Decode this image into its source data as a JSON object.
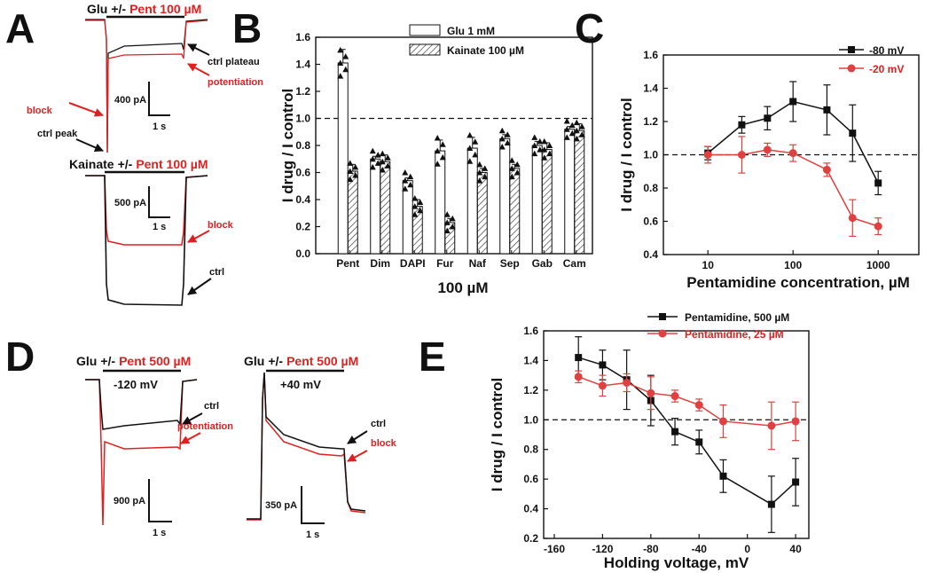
{
  "panel_labels": {
    "a": "A",
    "b": "B",
    "c": "C",
    "d": "D",
    "e": "E"
  },
  "traces": {
    "a_top": {
      "prefix": "Glu",
      "pm": "+/-",
      "drug": "Pent 100 µM",
      "ctrl_plateau": "ctrl plateau",
      "potentiation": "potentiation",
      "block": "block",
      "ctrl_peak": "ctrl peak",
      "scale_current": "400 pA",
      "scale_time": "1 s"
    },
    "a_bottom": {
      "prefix": "Kainate",
      "pm": "+/-",
      "drug": "Pent 100 µM",
      "scale_current": "500 pA",
      "scale_time": "1 s",
      "block": "block",
      "ctrl": "ctrl"
    },
    "d_left": {
      "prefix": "Glu",
      "pm": "+/-",
      "drug": "Pent 500 µM",
      "voltage": "-120 mV",
      "ctrl": "ctrl",
      "potentiation": "potentiation",
      "scale_current": "900 pA",
      "scale_time": "1 s"
    },
    "d_right": {
      "prefix": "Glu",
      "pm": "+/-",
      "drug": "Pent 500 µM",
      "voltage": "+40 mV",
      "ctrl": "ctrl",
      "block": "block",
      "scale_current": "350 pA",
      "scale_time": "1 s"
    }
  },
  "colors": {
    "black": "#111111",
    "red": "#e02020",
    "bar_open": "#ffffff"
  },
  "chart_data": [
    {
      "id": "B",
      "type": "bar",
      "title": "",
      "xlabel": "100 µM",
      "ylabel": "I drug / I control",
      "ylim": [
        0,
        1.6
      ],
      "yticks": [
        "0.0",
        "0.2",
        "0.4",
        "0.6",
        "0.8",
        "1.0",
        "1.2",
        "1.4",
        "1.6"
      ],
      "reference_line": 1.0,
      "categories": [
        "Pent",
        "Dim",
        "DAPI",
        "Fur",
        "Naf",
        "Sep",
        "Gab",
        "Cam"
      ],
      "series": [
        {
          "name": "Glu 1 mM",
          "values": [
            1.41,
            0.7,
            0.54,
            0.76,
            0.78,
            0.85,
            0.8,
            0.92
          ],
          "errors": [
            0.1,
            0.02,
            0.02,
            0.08,
            0.08,
            0.03,
            0.03,
            0.02
          ]
        },
        {
          "name": "Kainate 100 µM",
          "values": [
            0.61,
            0.68,
            0.35,
            0.23,
            0.6,
            0.63,
            0.77,
            0.91
          ],
          "errors": [
            0.05,
            0.05,
            0.05,
            0.03,
            0.03,
            0.03,
            0.05,
            0.05
          ]
        }
      ]
    },
    {
      "id": "C",
      "type": "line",
      "xscale": "log",
      "xlabel": "Pentamidine concentration, µM",
      "ylabel": "I drug / I control",
      "xlim": [
        3,
        3000
      ],
      "ylim": [
        0.4,
        1.6
      ],
      "xticks": [
        "10",
        "100",
        "1000"
      ],
      "yticks": [
        "0.4",
        "0.6",
        "0.8",
        "1.0",
        "1.2",
        "1.4",
        "1.6"
      ],
      "reference_line": 1.0,
      "legend_position": "top-right",
      "series": [
        {
          "name": "-80 mV",
          "marker": "square",
          "x": [
            10,
            25,
            50,
            100,
            250,
            500,
            1000
          ],
          "y": [
            1.01,
            1.18,
            1.22,
            1.32,
            1.27,
            1.13,
            0.83
          ],
          "errors": [
            0.04,
            0.05,
            0.07,
            0.12,
            0.15,
            0.17,
            0.07
          ]
        },
        {
          "name": "-20 mV",
          "marker": "circle",
          "x": [
            10,
            25,
            50,
            100,
            250,
            500,
            1000
          ],
          "y": [
            1.0,
            1.0,
            1.03,
            1.01,
            0.91,
            0.62,
            0.57
          ],
          "errors": [
            0.05,
            0.11,
            0.04,
            0.05,
            0.04,
            0.11,
            0.05
          ]
        }
      ]
    },
    {
      "id": "E",
      "type": "line",
      "xlabel": "Holding voltage, mV",
      "ylabel": "I drug / I control",
      "xlim": [
        -160,
        40
      ],
      "ylim": [
        0.2,
        1.6
      ],
      "xticks": [
        "-160",
        "-120",
        "-80",
        "-40",
        "0",
        "40"
      ],
      "yticks": [
        "0.2",
        "0.4",
        "0.6",
        "0.8",
        "1.0",
        "1.2",
        "1.4",
        "1.6"
      ],
      "reference_line": 1.0,
      "legend_position": "top",
      "series": [
        {
          "name": "Pentamidine, 500 µM",
          "marker": "square",
          "x": [
            -140,
            -120,
            -100,
            -80,
            -60,
            -40,
            -20,
            20,
            40
          ],
          "y": [
            1.42,
            1.37,
            1.27,
            1.13,
            0.92,
            0.85,
            0.62,
            0.43,
            0.58
          ],
          "errors": [
            0.14,
            0.1,
            0.2,
            0.17,
            0.09,
            0.08,
            0.11,
            0.19,
            0.16
          ]
        },
        {
          "name": "Pentamidine, 25 µM",
          "marker": "circle",
          "x": [
            -140,
            -120,
            -100,
            -80,
            -60,
            -40,
            -20,
            20,
            40
          ],
          "y": [
            1.29,
            1.23,
            1.25,
            1.18,
            1.16,
            1.1,
            0.99,
            0.96,
            0.99
          ],
          "errors": [
            0.04,
            0.07,
            0.06,
            0.11,
            0.04,
            0.04,
            0.11,
            0.16,
            0.13
          ]
        }
      ]
    }
  ]
}
